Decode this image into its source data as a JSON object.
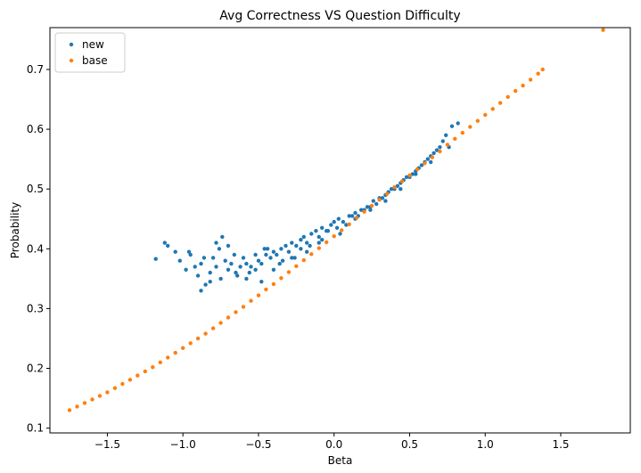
{
  "chart_data": {
    "type": "scatter",
    "title": "Avg Correctness VS Question Difficulty",
    "xlabel": "Beta",
    "ylabel": "Probability",
    "xlim": [
      -1.88,
      1.96
    ],
    "ylim": [
      0.092,
      0.77
    ],
    "xticks": [
      -1.5,
      -1.0,
      -0.5,
      0.0,
      0.5,
      1.0,
      1.5
    ],
    "xtick_labels": [
      "−1.5",
      "−1.0",
      "−0.5",
      "0.0",
      "0.5",
      "1.0",
      "1.5"
    ],
    "yticks": [
      0.1,
      0.2,
      0.3,
      0.4,
      0.5,
      0.6,
      0.7
    ],
    "ytick_labels": [
      "0.1",
      "0.2",
      "0.3",
      "0.4",
      "0.5",
      "0.6",
      "0.7"
    ],
    "grid": false,
    "legend_position": "top-left",
    "series": [
      {
        "name": "new",
        "color": "#1f77b4",
        "x": [
          -1.18,
          -1.12,
          -1.05,
          -1.02,
          -0.98,
          -0.95,
          -0.92,
          -0.9,
          -0.88,
          -0.85,
          -0.82,
          -0.8,
          -0.78,
          -0.75,
          -0.72,
          -0.7,
          -0.68,
          -0.65,
          -0.62,
          -0.6,
          -0.58,
          -0.55,
          -0.52,
          -0.5,
          -0.48,
          -0.45,
          -0.42,
          -0.4,
          -0.38,
          -0.35,
          -0.32,
          -0.3,
          -0.28,
          -0.25,
          -0.22,
          -0.2,
          -0.18,
          -0.15,
          -0.12,
          -0.1,
          -0.08,
          -0.05,
          -0.02,
          0.0,
          0.03,
          0.06,
          0.1,
          0.14,
          0.18,
          0.22,
          0.26,
          0.3,
          0.34,
          0.38,
          0.42,
          0.46,
          0.5,
          0.54,
          0.58,
          0.62,
          0.66,
          0.7,
          0.74,
          0.78,
          0.82,
          -0.88,
          -0.82,
          -0.78,
          -0.74,
          -0.7,
          -0.64,
          -0.58,
          -0.52,
          -0.46,
          -0.4,
          -0.34,
          -0.28,
          -0.22,
          -0.16,
          -0.1,
          -0.04,
          0.02,
          0.08,
          0.12,
          0.16,
          0.2,
          0.24,
          0.28,
          0.32,
          0.36,
          0.4,
          0.44,
          0.48,
          0.52,
          0.56,
          0.6,
          0.64,
          0.68,
          0.72,
          -1.1,
          -0.96,
          -0.86,
          -0.76,
          -0.66,
          -0.56,
          -0.48,
          -0.44,
          -0.36,
          -0.26,
          -0.18,
          -0.08,
          0.04,
          0.14,
          0.24,
          0.34,
          0.44,
          0.54,
          0.64,
          0.76
        ],
        "y": [
          0.383,
          0.41,
          0.395,
          0.38,
          0.365,
          0.39,
          0.37,
          0.355,
          0.375,
          0.34,
          0.36,
          0.385,
          0.37,
          0.35,
          0.38,
          0.365,
          0.375,
          0.36,
          0.37,
          0.385,
          0.375,
          0.37,
          0.39,
          0.38,
          0.375,
          0.39,
          0.385,
          0.395,
          0.39,
          0.4,
          0.405,
          0.395,
          0.41,
          0.405,
          0.415,
          0.42,
          0.41,
          0.425,
          0.43,
          0.42,
          0.435,
          0.43,
          0.44,
          0.445,
          0.45,
          0.445,
          0.455,
          0.46,
          0.465,
          0.47,
          0.48,
          0.485,
          0.49,
          0.5,
          0.505,
          0.515,
          0.52,
          0.53,
          0.54,
          0.55,
          0.56,
          0.57,
          0.59,
          0.605,
          0.61,
          0.33,
          0.345,
          0.41,
          0.42,
          0.405,
          0.355,
          0.35,
          0.365,
          0.4,
          0.365,
          0.38,
          0.385,
          0.4,
          0.405,
          0.41,
          0.43,
          0.435,
          0.44,
          0.455,
          0.455,
          0.465,
          0.47,
          0.475,
          0.485,
          0.495,
          0.5,
          0.51,
          0.52,
          0.525,
          0.535,
          0.545,
          0.555,
          0.565,
          0.58,
          0.405,
          0.395,
          0.385,
          0.4,
          0.39,
          0.36,
          0.345,
          0.4,
          0.375,
          0.385,
          0.395,
          0.415,
          0.425,
          0.45,
          0.465,
          0.48,
          0.5,
          0.525,
          0.545,
          0.57
        ]
      },
      {
        "name": "base",
        "color": "#ff7f0e",
        "x": [
          -1.75,
          -1.7,
          -1.65,
          -1.6,
          -1.55,
          -1.5,
          -1.45,
          -1.4,
          -1.35,
          -1.3,
          -1.25,
          -1.2,
          -1.15,
          -1.1,
          -1.05,
          -1.0,
          -0.95,
          -0.9,
          -0.85,
          -0.8,
          -0.75,
          -0.7,
          -0.65,
          -0.6,
          -0.55,
          -0.5,
          -0.45,
          -0.4,
          -0.35,
          -0.3,
          -0.25,
          -0.2,
          -0.15,
          -0.1,
          -0.05,
          0.0,
          0.05,
          0.1,
          0.15,
          0.2,
          0.25,
          0.3,
          0.35,
          0.4,
          0.45,
          0.5,
          0.55,
          0.6,
          0.65,
          0.7,
          0.75,
          0.8,
          0.85,
          0.9,
          0.95,
          1.0,
          1.05,
          1.1,
          1.15,
          1.2,
          1.25,
          1.3,
          1.35,
          1.38,
          1.78
        ],
        "y": [
          0.13,
          0.136,
          0.142,
          0.148,
          0.154,
          0.16,
          0.167,
          0.174,
          0.181,
          0.188,
          0.195,
          0.202,
          0.21,
          0.218,
          0.226,
          0.234,
          0.242,
          0.25,
          0.258,
          0.267,
          0.276,
          0.285,
          0.294,
          0.303,
          0.313,
          0.322,
          0.332,
          0.341,
          0.351,
          0.361,
          0.371,
          0.381,
          0.391,
          0.401,
          0.411,
          0.421,
          0.431,
          0.441,
          0.452,
          0.462,
          0.472,
          0.482,
          0.492,
          0.503,
          0.513,
          0.523,
          0.533,
          0.543,
          0.553,
          0.563,
          0.574,
          0.584,
          0.594,
          0.604,
          0.614,
          0.624,
          0.634,
          0.644,
          0.654,
          0.664,
          0.673,
          0.683,
          0.693,
          0.7,
          0.766
        ]
      }
    ]
  }
}
